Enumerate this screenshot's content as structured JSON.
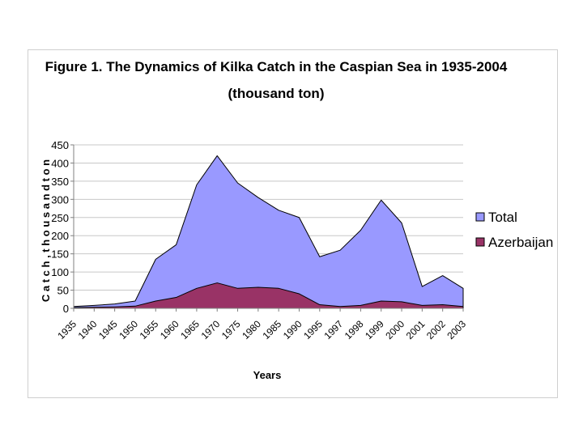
{
  "chart_data": {
    "type": "area",
    "title": "Figure 1. The Dynamics of Kilka Catch in the Caspian Sea in 1935-2004",
    "subtitle": "(thousand ton)",
    "xlabel": "Years",
    "ylabel": "C a t c h , t h o u s a n d t o n",
    "ylim": [
      0,
      450
    ],
    "yticks": [
      "0",
      "50",
      "100",
      "150",
      "200",
      "250",
      "300",
      "350",
      "400",
      "450"
    ],
    "categories": [
      "1935",
      "1940",
      "1945",
      "1950",
      "1955",
      "1960",
      "1965",
      "1970",
      "1975",
      "1980",
      "1985",
      "1990",
      "1995",
      "1997",
      "1998",
      "1999",
      "2000",
      "2001",
      "2002",
      "2003"
    ],
    "grid": true,
    "legend": "right",
    "series": [
      {
        "name": "Total",
        "color": "#9999ff",
        "values": [
          5,
          8,
          12,
          20,
          135,
          175,
          340,
          420,
          345,
          305,
          270,
          250,
          142,
          160,
          215,
          298,
          235,
          60,
          90,
          55
        ]
      },
      {
        "name": "Azerbaijan",
        "color": "#993366",
        "values": [
          2,
          3,
          4,
          6,
          20,
          30,
          55,
          70,
          55,
          58,
          55,
          40,
          10,
          5,
          8,
          20,
          18,
          8,
          10,
          5
        ]
      }
    ]
  }
}
